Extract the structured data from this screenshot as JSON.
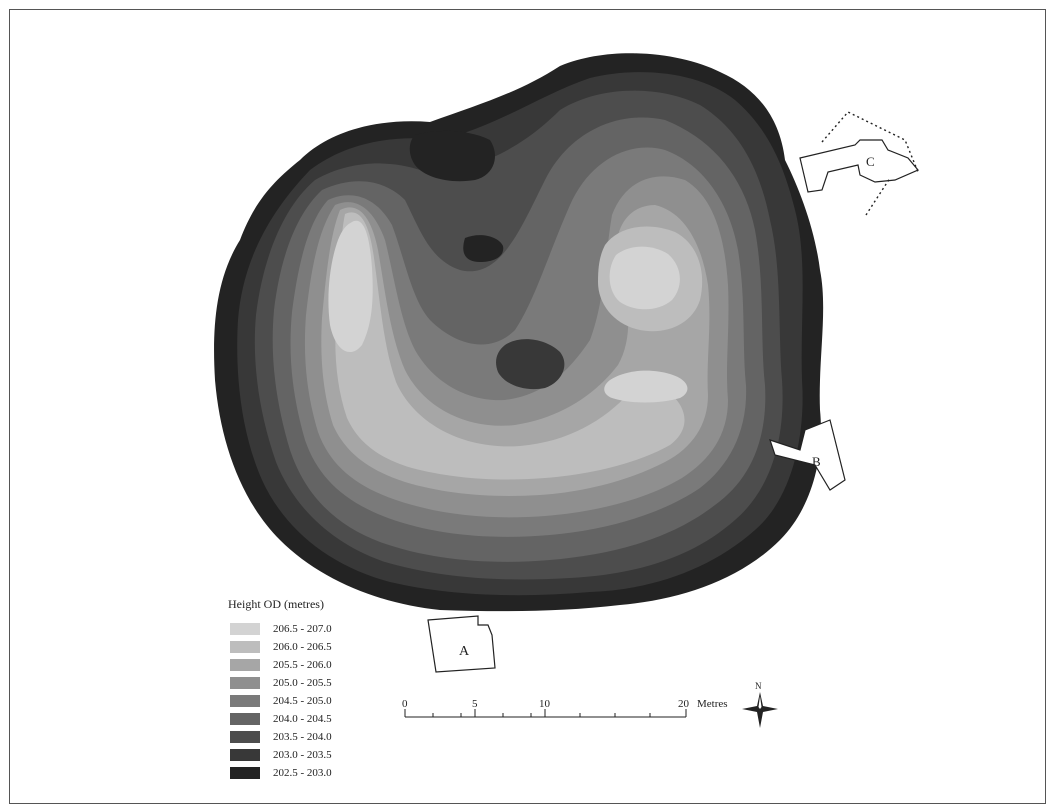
{
  "legend": {
    "title": "Height OD (metres)",
    "classes": [
      {
        "label": "206.5 - 207.0",
        "color": "#d3d3d3"
      },
      {
        "label": "206.0 - 206.5",
        "color": "#bdbdbd"
      },
      {
        "label": "205.5 - 206.0",
        "color": "#a6a6a6"
      },
      {
        "label": "205.0 - 205.5",
        "color": "#8f8f8f"
      },
      {
        "label": "204.5 - 205.0",
        "color": "#7a7a7a"
      },
      {
        "label": "204.0 - 204.5",
        "color": "#646464"
      },
      {
        "label": "203.5 - 204.0",
        "color": "#4d4d4d"
      },
      {
        "label": "203.0 - 203.5",
        "color": "#383838"
      },
      {
        "label": "202.5 - 203.0",
        "color": "#232323"
      }
    ]
  },
  "structures": {
    "a": "A",
    "b": "B",
    "c": "C"
  },
  "scale_bar": {
    "ticks": [
      "0",
      "5",
      "10",
      "20"
    ],
    "unit": "Metres"
  },
  "north_arrow": {
    "label": "N"
  }
}
